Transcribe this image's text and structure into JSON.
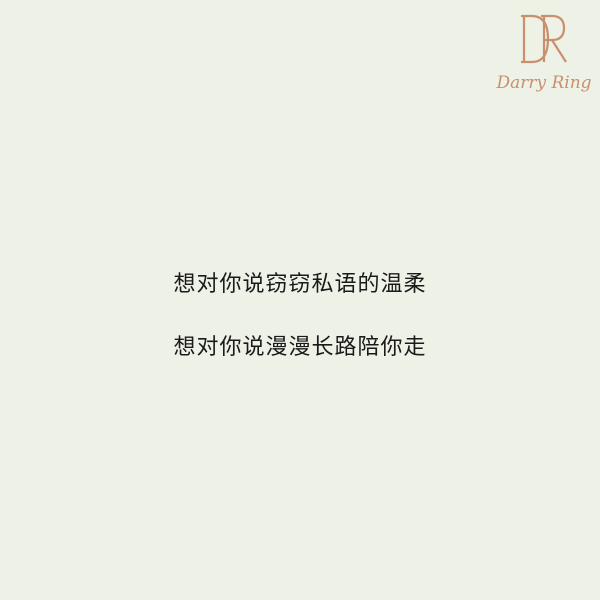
{
  "brand": {
    "monogram": "DR",
    "name": "Darry Ring",
    "color": "#c8906f"
  },
  "background_color": "#eef1e6",
  "poem": {
    "lines": [
      "想对你说窃窃私语的温柔",
      "想对你说漫漫长路陪你走"
    ]
  }
}
